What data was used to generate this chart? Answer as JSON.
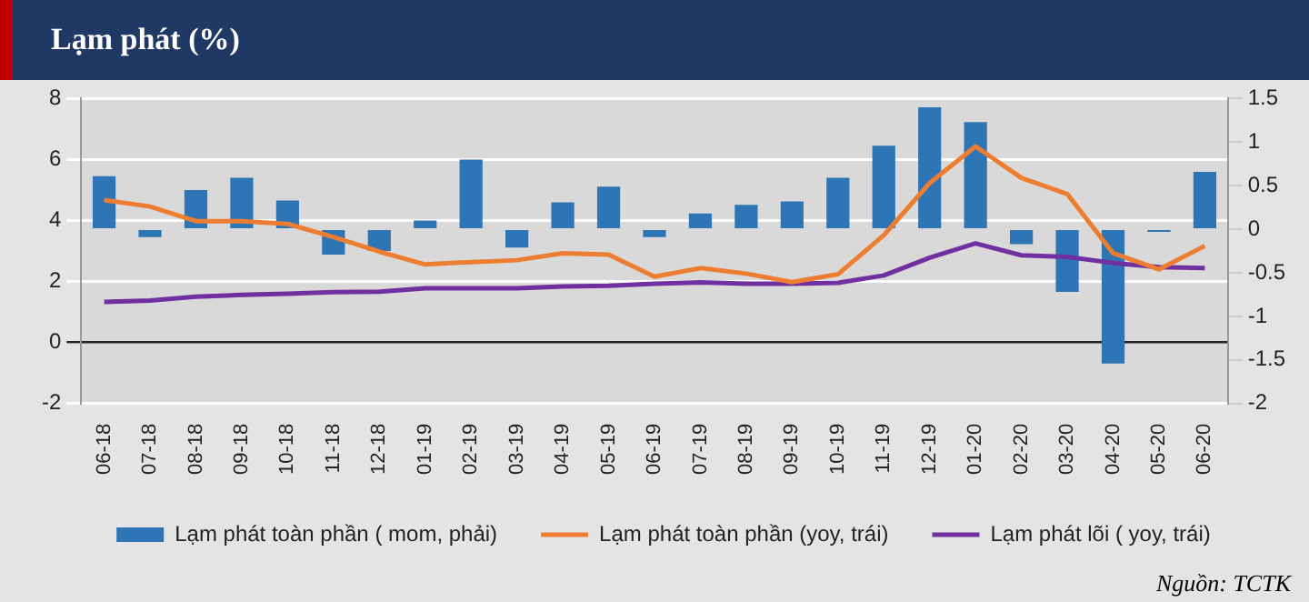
{
  "chart_data": {
    "type": "bar",
    "title": "Lạm phát (%)",
    "categories": [
      "06-18",
      "07-18",
      "08-18",
      "09-18",
      "10-18",
      "11-18",
      "12-18",
      "01-19",
      "02-19",
      "03-19",
      "04-19",
      "05-19",
      "06-19",
      "07-19",
      "08-19",
      "09-19",
      "10-19",
      "11-19",
      "12-19",
      "01-20",
      "02-20",
      "03-20",
      "04-20",
      "05-20",
      "06-20"
    ],
    "series": [
      {
        "name": "Lạm phát toàn phần ( mom, phải)",
        "axis": "y2",
        "color": "#2e75b6",
        "values": [
          0.61,
          -0.09,
          0.45,
          0.59,
          0.33,
          -0.29,
          -0.25,
          0.1,
          0.8,
          -0.21,
          0.31,
          0.49,
          -0.09,
          0.18,
          0.28,
          0.32,
          0.59,
          0.96,
          1.4,
          1.23,
          -0.17,
          -0.72,
          -1.54,
          -0.03,
          0.66
        ]
      },
      {
        "name": "Lạm phát toàn phần (yoy, trái)",
        "type": "line",
        "color": "#ed7d31",
        "values": [
          4.67,
          4.46,
          3.98,
          3.98,
          3.89,
          3.46,
          2.98,
          2.56,
          2.64,
          2.7,
          2.93,
          2.88,
          2.16,
          2.44,
          2.26,
          1.98,
          2.24,
          3.52,
          5.23,
          6.43,
          5.4,
          4.87,
          2.93,
          2.4,
          3.17
        ]
      },
      {
        "name": "Lạm phát lõi ( yoy, trái)",
        "type": "line",
        "color": "#7030a0",
        "values": [
          1.33,
          1.38,
          1.5,
          1.56,
          1.6,
          1.65,
          1.67,
          1.78,
          1.78,
          1.78,
          1.84,
          1.86,
          1.93,
          1.97,
          1.93,
          1.93,
          1.96,
          2.2,
          2.78,
          3.25,
          2.86,
          2.81,
          2.61,
          2.47,
          2.44
        ]
      }
    ],
    "ylim": [
      -2,
      8
    ],
    "yticks": [
      -2,
      0,
      2,
      4,
      6,
      8
    ],
    "y2lim": [
      -2,
      1.5
    ],
    "y2ticks": [
      -2,
      -1.5,
      -1,
      -0.5,
      0,
      0.5,
      1,
      1.5
    ],
    "grid": "y",
    "legend": "bottom",
    "marker": "none",
    "line_style": "solid",
    "annotations": [
      "Nguồn: TCTK"
    ]
  }
}
